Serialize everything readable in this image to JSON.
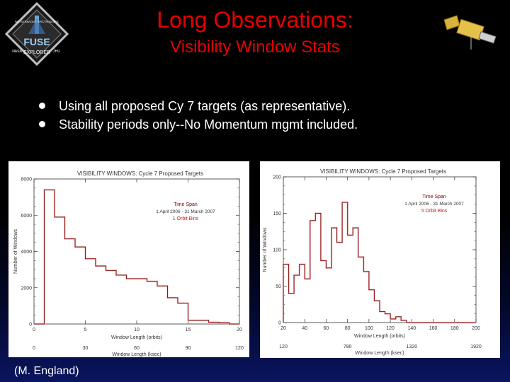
{
  "header": {
    "title": "Long Observations:",
    "subtitle": "Visibility Window Stats"
  },
  "logo": {
    "ring_text_top": "FAR ULTRAVIOLET SPECTROSCOPIC",
    "main": "FUSE",
    "explorer": "EXPLORER",
    "left_small": "NASA",
    "right_small": "JHU"
  },
  "bullets": [
    "Using all proposed Cy 7 targets (as representative).",
    "Stability periods only--No Momentum mgmt included."
  ],
  "credit": "(M. England)",
  "colors": {
    "title": "#e60000",
    "series": "#8b1a1a",
    "series_light": "#e8b7b7"
  },
  "chart_data": [
    {
      "type": "bar",
      "title": "VISIBILITY WINDOWS: Cycle 7 Proposed Targets",
      "legend_title": "Time Span",
      "legend_range": "1 April 2006 - 31 March 2007",
      "series_name": "1 Orbit Bins",
      "xlabel": "Window Length (orbits)",
      "xlabel2": "Window Length (ksec)",
      "ylabel": "Number of Windows",
      "x_ticks": [
        "0",
        "5",
        "10",
        "15",
        "20"
      ],
      "x2_ticks": [
        "0",
        "30",
        "60",
        "90",
        "120"
      ],
      "y_ticks": [
        "0",
        "2000",
        "4000",
        "6000",
        "8000"
      ],
      "xlim": [
        0,
        20
      ],
      "ylim": [
        0,
        8000
      ],
      "bin_width": 1,
      "values": [
        0,
        7400,
        5900,
        4700,
        4250,
        3600,
        3200,
        2950,
        2700,
        2500,
        2500,
        2350,
        2100,
        1450,
        1150,
        200,
        200,
        100,
        80,
        0
      ],
      "legend_position": "top-right"
    },
    {
      "type": "bar",
      "title": "VISIBILITY WINDOWS: Cycle 7 Proposed Targets",
      "legend_title": "Time Span",
      "legend_range": "1 April 2006 - 31 March 2007",
      "series_name": "5 Orbit Bins",
      "xlabel": "Window Length (orbits)",
      "xlabel2": "Window Length (ksec)",
      "ylabel": "Number of Windows",
      "x_ticks": [
        "20",
        "40",
        "60",
        "80",
        "100",
        "120",
        "140",
        "160",
        "180",
        "200"
      ],
      "x2_ticks": [
        "120",
        "780",
        "1320",
        "1920"
      ],
      "y_ticks": [
        "0",
        "50",
        "100",
        "150",
        "200"
      ],
      "xlim": [
        20,
        200
      ],
      "ylim": [
        0,
        200
      ],
      "bin_width": 5,
      "x_start": 20,
      "values": [
        80,
        40,
        65,
        80,
        60,
        140,
        150,
        85,
        75,
        130,
        110,
        165,
        120,
        130,
        90,
        70,
        45,
        30,
        15,
        12,
        5,
        8,
        3,
        0,
        0,
        0,
        0,
        0,
        0,
        0,
        0,
        0,
        0,
        0,
        0,
        0
      ],
      "legend_position": "top-right"
    }
  ]
}
